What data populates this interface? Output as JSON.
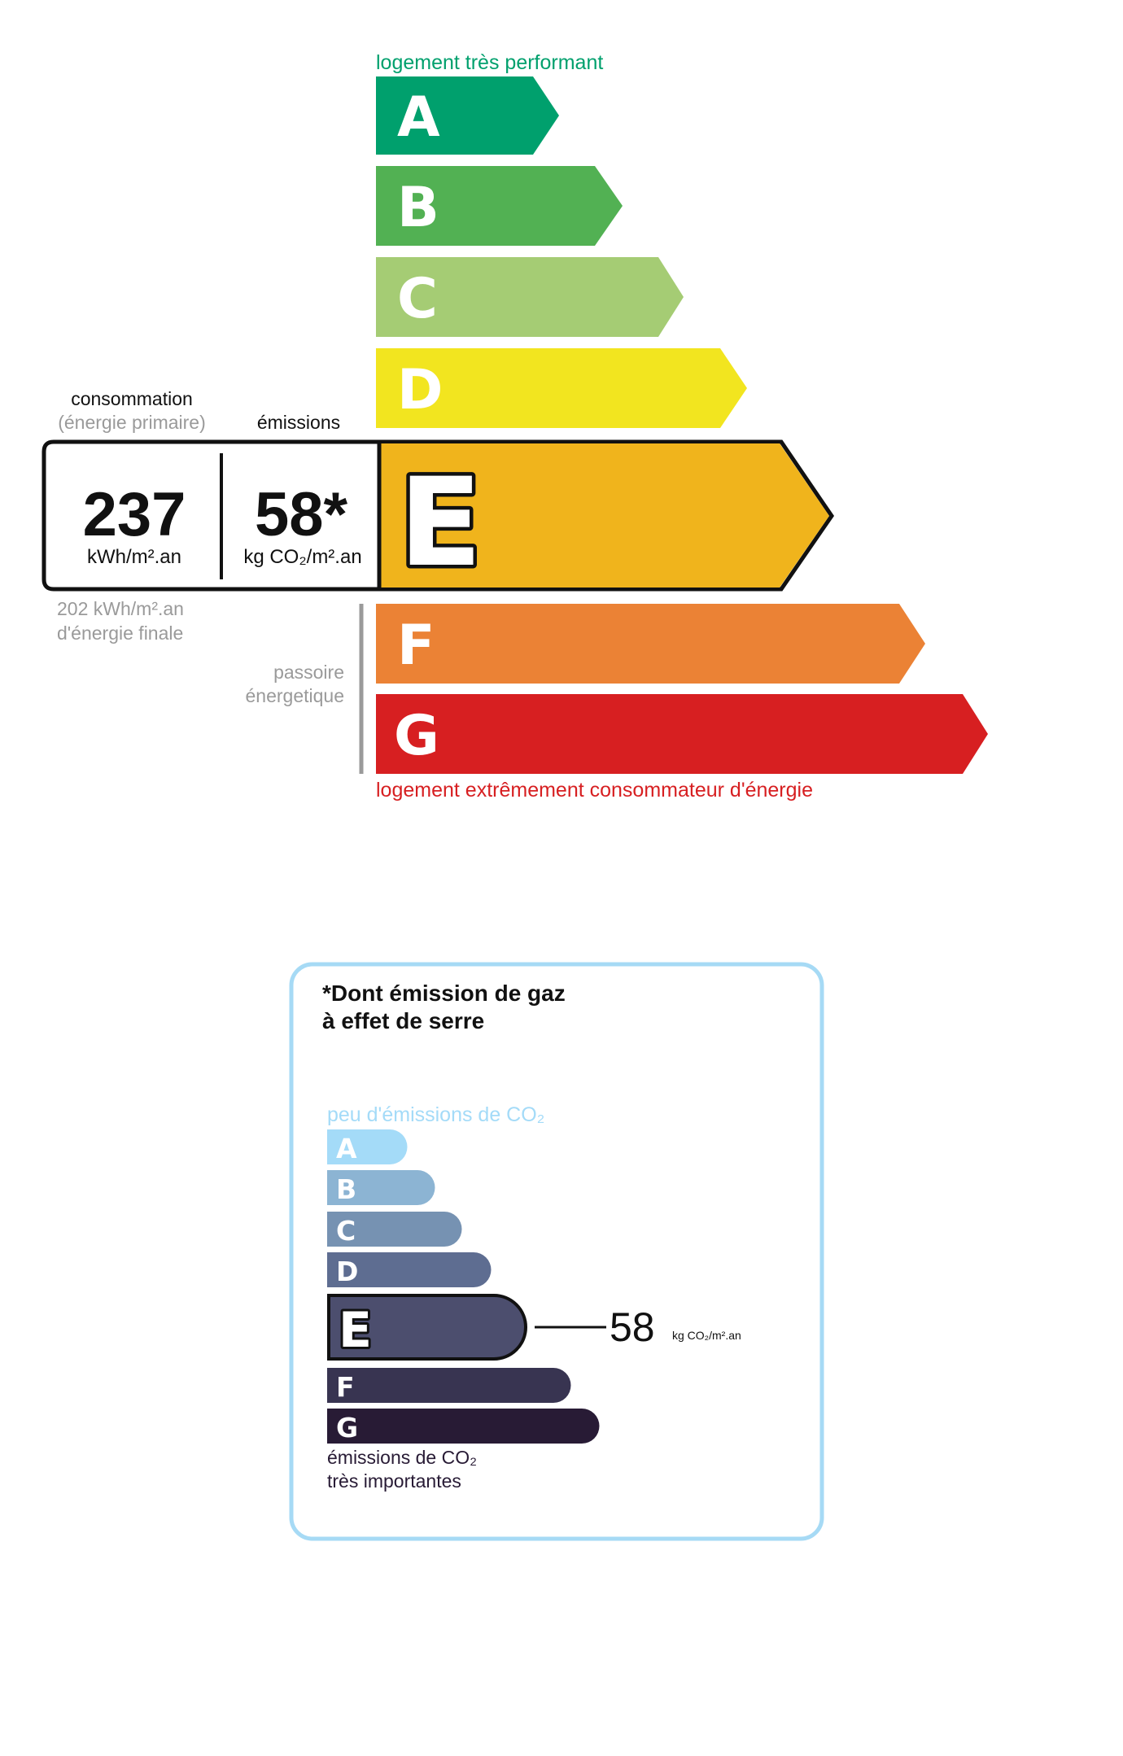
{
  "energy_label": {
    "top_caption": "logement très performant",
    "bottom_caption": "logement extrêmement consommateur d'énergie",
    "classes": [
      {
        "letter": "A",
        "color": "#00a06d"
      },
      {
        "letter": "B",
        "color": "#52b153"
      },
      {
        "letter": "C",
        "color": "#a5cc74"
      },
      {
        "letter": "D",
        "color": "#f2e51f"
      },
      {
        "letter": "E",
        "color": "#f0b41c"
      },
      {
        "letter": "F",
        "color": "#eb8235"
      },
      {
        "letter": "G",
        "color": "#d71f21"
      }
    ],
    "current_class": "E",
    "consumption_title": "consommation",
    "consumption_subtitle": "(énergie primaire)",
    "emissions_title": "émissions",
    "consumption_value": "237",
    "consumption_unit": "kWh/m².an",
    "emissions_value": "58*",
    "emissions_unit": "kg CO₂/m².an",
    "final_energy_value": "202 kWh/m².an",
    "final_energy_label": "d'énergie finale",
    "passoire_line1": "passoire",
    "passoire_line2": "énergetique"
  },
  "ghg_panel": {
    "title_line1": "*Dont émission de gaz",
    "title_line2": "à effet de serre",
    "top_caption": "peu d'émissions de CO₂",
    "bottom_caption_line1": "émissions de CO₂",
    "bottom_caption_line2": "très importantes",
    "classes": [
      {
        "letter": "A",
        "color": "#a4dbf8"
      },
      {
        "letter": "B",
        "color": "#8cb4d3"
      },
      {
        "letter": "C",
        "color": "#7692b2"
      },
      {
        "letter": "D",
        "color": "#5e6d91"
      },
      {
        "letter": "E",
        "color": "#4c4e6e"
      },
      {
        "letter": "F",
        "color": "#383451"
      },
      {
        "letter": "G",
        "color": "#281b35"
      }
    ],
    "current_class": "E",
    "value": "58",
    "unit": "kg CO₂/m².an",
    "border_color": "#a6daf5"
  }
}
